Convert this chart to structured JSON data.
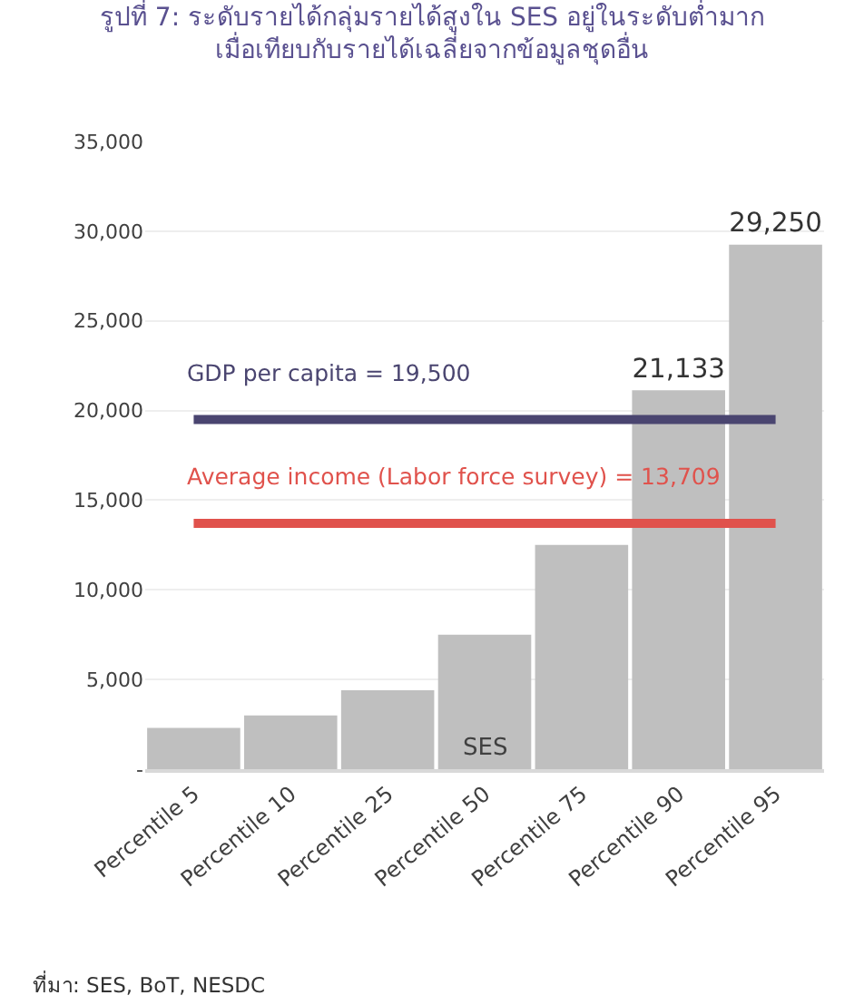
{
  "chart_data": {
    "type": "bar",
    "title": "รูปที่ 7: ระดับรายได้กลุ่มรายได้สูงใน SES อยู่ในระดับต่ำมาก\nเมื่อเทียบกับรายได้เฉลี่ยจากข้อมูลชุดอื่น",
    "categories": [
      "Percentile 5",
      "Percentile 10",
      "Percentile 25",
      "Percentile 50",
      "Percentile 75",
      "Percentile 90",
      "Percentile 95"
    ],
    "values": [
      2300,
      3000,
      4400,
      7500,
      12500,
      21133,
      29250
    ],
    "value_labels": [
      null,
      null,
      null,
      null,
      null,
      "21,133",
      "29,250"
    ],
    "color": "#bfbfbf",
    "ylim": [
      0,
      35000
    ],
    "yticks": [
      {
        "value": 0,
        "label": "-"
      },
      {
        "value": 5000,
        "label": "5,000"
      },
      {
        "value": 10000,
        "label": "10,000"
      },
      {
        "value": 15000,
        "label": "15,000"
      },
      {
        "value": 20000,
        "label": "20,000"
      },
      {
        "value": 25000,
        "label": "25,000"
      },
      {
        "value": 30000,
        "label": "30,000"
      },
      {
        "value": 35000,
        "label": "35,000"
      }
    ],
    "grid": "y",
    "legend": false,
    "ref_lines": [
      {
        "axis": "y",
        "value": 19500,
        "label": "GDP per capita = 19,500",
        "color": "#4a4570"
      },
      {
        "axis": "y",
        "value": 13709,
        "label": "Average income (Labor force survey) = 13,709",
        "color": "#e0524c"
      }
    ],
    "annotations": [
      {
        "text": "SES",
        "x": "Percentile 50",
        "y": 0
      },
      "ที่มา: SES, BoT, NESDC"
    ]
  }
}
